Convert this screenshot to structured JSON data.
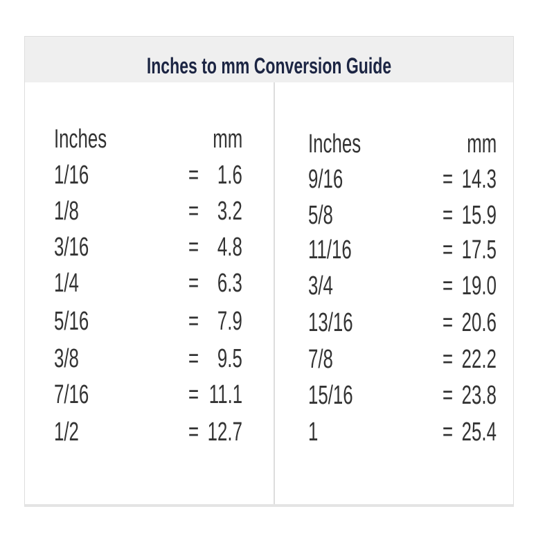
{
  "title": "Inches to mm Conversion Guide",
  "tables": [
    {
      "header": {
        "inches": "Inches",
        "mm": "mm"
      },
      "rows": [
        [
          "1/16",
          "=",
          "1.6"
        ],
        [
          "1/8",
          "=",
          "3.2"
        ],
        [
          "3/16",
          "=",
          "4.8"
        ],
        [
          "1/4",
          "=",
          "6.3"
        ],
        [
          "5/16",
          "=",
          "7.9"
        ],
        [
          "3/8",
          "=",
          "9.5"
        ],
        [
          "7/16",
          "=",
          "11.1"
        ],
        [
          "1/2",
          "=",
          "12.7"
        ]
      ]
    },
    {
      "header": {
        "inches": "Inches",
        "mm": "mm"
      },
      "rows": [
        [
          "9/16",
          "=",
          "14.3"
        ],
        [
          "5/8",
          "=",
          "15.9"
        ],
        [
          "11/16",
          "=",
          "17.5"
        ],
        [
          "3/4",
          "=",
          "19.0"
        ],
        [
          "13/16",
          "=",
          "20.6"
        ],
        [
          "7/8",
          "=",
          "22.2"
        ],
        [
          "15/16",
          "=",
          "23.8"
        ],
        [
          "1",
          "=",
          "25.4"
        ]
      ]
    }
  ],
  "colors": {
    "title": "#1c2543",
    "header_bg": "#efefef",
    "text": "#333333"
  }
}
